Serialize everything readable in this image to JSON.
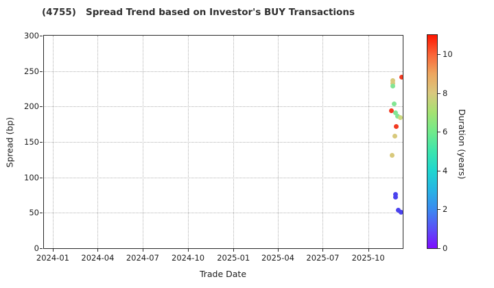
{
  "title": "(4755)   Spread Trend based on Investor's BUY Transactions",
  "x_axis": {
    "label": "Trade Date",
    "tick_labels": [
      "2024-01",
      "2024-04",
      "2024-07",
      "2024-10",
      "2025-01",
      "2025-04",
      "2025-07",
      "2025-10"
    ],
    "tick_dates": [
      "2024-01-01",
      "2024-04-01",
      "2024-07-01",
      "2024-10-01",
      "2025-01-01",
      "2025-04-01",
      "2025-07-01",
      "2025-10-01"
    ]
  },
  "y_axis": {
    "label": "Spread (bp)",
    "tick_values": [
      0,
      50,
      100,
      150,
      200,
      250,
      300
    ]
  },
  "colorbar": {
    "label": "Duration (years)",
    "tick_values": [
      0,
      2,
      4,
      6,
      8,
      10
    ],
    "vmin": 0,
    "vmax": 11,
    "gradient_stops": [
      "#7d0dfe",
      "#5a50f7",
      "#3b8af0",
      "#27b4e4",
      "#1fd6cf",
      "#3ce5ad",
      "#71ea8b",
      "#a5e272",
      "#d9c87e",
      "#eda65f",
      "#fa6437",
      "#fe1500"
    ]
  },
  "chart_data": {
    "type": "scatter",
    "title": "(4755)   Spread Trend based on Investor's BUY Transactions",
    "xlabel": "Trade Date",
    "ylabel": "Spread (bp)",
    "color_label": "Duration (years)",
    "x_range": [
      "2023-12-14",
      "2025-12-10"
    ],
    "y_range": [
      0,
      300
    ],
    "color_range": [
      0,
      11
    ],
    "grid": true,
    "marker_size_px": 7,
    "points": [
      {
        "date": "2025-11-20",
        "spread_bp": 237,
        "duration_years": 7.8,
        "color": "#d8c97c"
      },
      {
        "date": "2025-11-20",
        "spread_bp": 233,
        "duration_years": 7.8,
        "color": "#d8c97c"
      },
      {
        "date": "2025-11-20",
        "spread_bp": 229,
        "duration_years": 5.7,
        "color": "#82e594"
      },
      {
        "date": "2025-12-08",
        "spread_bp": 241,
        "duration_years": 10.5,
        "color": "#f23a21"
      },
      {
        "date": "2025-11-22",
        "spread_bp": 204,
        "duration_years": 5.7,
        "color": "#82e594"
      },
      {
        "date": "2025-11-17",
        "spread_bp": 194,
        "duration_years": 10.5,
        "color": "#f23a21"
      },
      {
        "date": "2025-11-25",
        "spread_bp": 191,
        "duration_years": 5.7,
        "color": "#82e594"
      },
      {
        "date": "2025-11-30",
        "spread_bp": 186,
        "duration_years": 5.7,
        "color": "#82e594"
      },
      {
        "date": "2025-12-05",
        "spread_bp": 184,
        "duration_years": 6.8,
        "color": "#cdd97f"
      },
      {
        "date": "2025-11-27",
        "spread_bp": 172,
        "duration_years": 10.5,
        "color": "#f23a21"
      },
      {
        "date": "2025-11-24",
        "spread_bp": 158,
        "duration_years": 7.8,
        "color": "#d8c97c"
      },
      {
        "date": "2025-11-18",
        "spread_bp": 131,
        "duration_years": 7.8,
        "color": "#d8c97c"
      },
      {
        "date": "2025-11-25",
        "spread_bp": 76,
        "duration_years": 0.7,
        "color": "#4a42ee"
      },
      {
        "date": "2025-11-25",
        "spread_bp": 72,
        "duration_years": 0.7,
        "color": "#4a42ee"
      },
      {
        "date": "2025-12-01",
        "spread_bp": 54,
        "duration_years": 0.7,
        "color": "#4a42ee"
      },
      {
        "date": "2025-12-06",
        "spread_bp": 51,
        "duration_years": 0.7,
        "color": "#4a42ee"
      }
    ]
  }
}
